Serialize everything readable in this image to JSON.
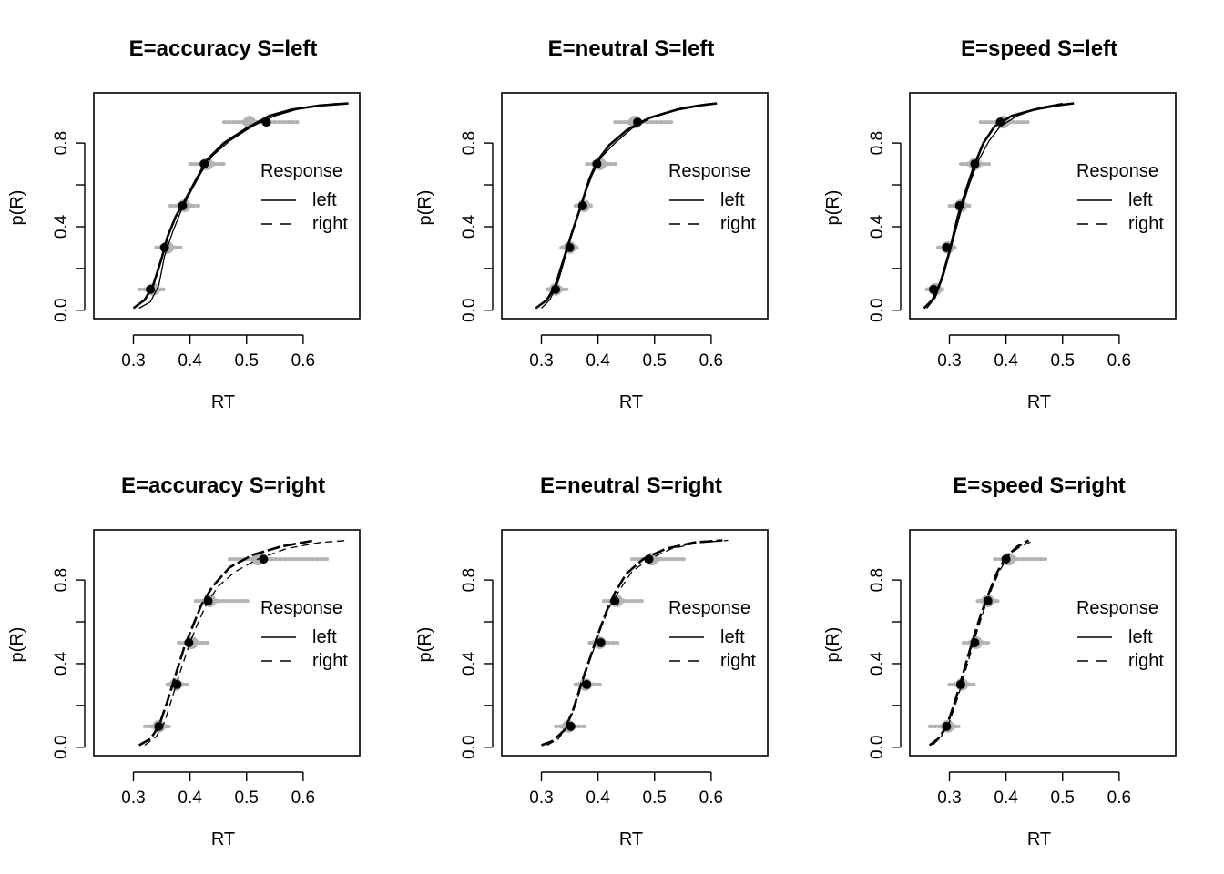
{
  "chart_data": [
    {
      "type": "line",
      "title": "E=accuracy S=left",
      "xlabel": "RT",
      "ylabel": "p(R)",
      "xlim": [
        0.23,
        0.7
      ],
      "ylim": [
        -0.04,
        1.04
      ],
      "xticks": [
        "0.3",
        "0.4",
        "0.5",
        "0.6"
      ],
      "yticks": [
        "0.0",
        "0.4",
        "0.8"
      ],
      "legend": {
        "title": "Response",
        "entries": [
          "left",
          "right"
        ],
        "styles": [
          "solid",
          "dashed"
        ],
        "position": "right"
      },
      "series": [
        {
          "name": "left",
          "style": "solid",
          "width": 2.6,
          "x": [
            0.3,
            0.32,
            0.335,
            0.35,
            0.36,
            0.375,
            0.39,
            0.41,
            0.43,
            0.46,
            0.5,
            0.54,
            0.58,
            0.63,
            0.68
          ],
          "y": [
            0.01,
            0.05,
            0.12,
            0.25,
            0.35,
            0.45,
            0.52,
            0.62,
            0.72,
            0.8,
            0.87,
            0.93,
            0.96,
            0.98,
            0.99
          ]
        },
        {
          "name": "left (predicted)",
          "style": "solid",
          "width": 1.3,
          "x": [
            0.31,
            0.33,
            0.345,
            0.355,
            0.37,
            0.385,
            0.4,
            0.42,
            0.44,
            0.47,
            0.51,
            0.55,
            0.6,
            0.66
          ],
          "y": [
            0.01,
            0.04,
            0.12,
            0.26,
            0.38,
            0.48,
            0.56,
            0.66,
            0.74,
            0.81,
            0.88,
            0.93,
            0.97,
            0.99
          ]
        }
      ],
      "observed": {
        "x": [
          0.33,
          0.355,
          0.387,
          0.425,
          0.535
        ],
        "y": [
          0.1,
          0.3,
          0.5,
          0.7,
          0.9
        ]
      },
      "sim_centers": {
        "x": [
          0.335,
          0.36,
          0.39,
          0.43,
          0.505
        ],
        "y": [
          0.1,
          0.3,
          0.5,
          0.7,
          0.9
        ]
      },
      "sim_ranges": [
        [
          0.31,
          0.355
        ],
        [
          0.34,
          0.385
        ],
        [
          0.365,
          0.415
        ],
        [
          0.4,
          0.46
        ],
        [
          0.46,
          0.59
        ]
      ]
    },
    {
      "type": "line",
      "title": "E=neutral S=left",
      "xlabel": "RT",
      "ylabel": "p(R)",
      "xlim": [
        0.23,
        0.7
      ],
      "ylim": [
        -0.04,
        1.04
      ],
      "xticks": [
        "0.3",
        "0.4",
        "0.5",
        "0.6"
      ],
      "yticks": [
        "0.0",
        "0.4",
        "0.8"
      ],
      "legend": {
        "title": "Response",
        "entries": [
          "left",
          "right"
        ],
        "styles": [
          "solid",
          "dashed"
        ],
        "position": "right"
      },
      "series": [
        {
          "name": "left",
          "style": "solid",
          "width": 2.6,
          "x": [
            0.29,
            0.31,
            0.325,
            0.34,
            0.355,
            0.37,
            0.385,
            0.4,
            0.42,
            0.45,
            0.49,
            0.54,
            0.58,
            0.61
          ],
          "y": [
            0.01,
            0.05,
            0.12,
            0.25,
            0.38,
            0.5,
            0.63,
            0.72,
            0.79,
            0.86,
            0.92,
            0.96,
            0.98,
            0.99
          ]
        },
        {
          "name": "left (predicted)",
          "style": "solid",
          "width": 1.3,
          "x": [
            0.3,
            0.315,
            0.33,
            0.345,
            0.36,
            0.375,
            0.39,
            0.405,
            0.43,
            0.46,
            0.5,
            0.55,
            0.6
          ],
          "y": [
            0.01,
            0.05,
            0.14,
            0.28,
            0.42,
            0.54,
            0.65,
            0.73,
            0.8,
            0.87,
            0.93,
            0.97,
            0.99
          ]
        }
      ],
      "observed": {
        "x": [
          0.325,
          0.35,
          0.373,
          0.398,
          0.47
        ],
        "y": [
          0.1,
          0.3,
          0.5,
          0.7,
          0.9
        ]
      },
      "sim_centers": {
        "x": [
          0.325,
          0.35,
          0.375,
          0.403,
          0.465
        ],
        "y": [
          0.1,
          0.3,
          0.5,
          0.7,
          0.9
        ]
      },
      "sim_ranges": [
        [
          0.31,
          0.345
        ],
        [
          0.335,
          0.365
        ],
        [
          0.36,
          0.39
        ],
        [
          0.38,
          0.435
        ],
        [
          0.43,
          0.53
        ]
      ]
    },
    {
      "type": "line",
      "title": "E=speed S=left",
      "xlabel": "RT",
      "ylabel": "p(R)",
      "xlim": [
        0.23,
        0.7
      ],
      "ylim": [
        -0.04,
        1.04
      ],
      "xticks": [
        "0.3",
        "0.4",
        "0.5",
        "0.6"
      ],
      "yticks": [
        "0.0",
        "0.4",
        "0.8"
      ],
      "legend": {
        "title": "Response",
        "entries": [
          "left",
          "right"
        ],
        "styles": [
          "solid",
          "dashed"
        ],
        "position": "right"
      },
      "series": [
        {
          "name": "left",
          "style": "solid",
          "width": 2.6,
          "x": [
            0.255,
            0.27,
            0.285,
            0.3,
            0.315,
            0.33,
            0.345,
            0.36,
            0.38,
            0.41,
            0.45,
            0.49,
            0.52
          ],
          "y": [
            0.01,
            0.05,
            0.14,
            0.28,
            0.45,
            0.58,
            0.7,
            0.8,
            0.88,
            0.93,
            0.96,
            0.98,
            0.99
          ]
        },
        {
          "name": "left (predicted)",
          "style": "solid",
          "width": 1.3,
          "x": [
            0.26,
            0.275,
            0.29,
            0.305,
            0.32,
            0.335,
            0.35,
            0.37,
            0.39,
            0.42,
            0.46,
            0.5
          ],
          "y": [
            0.01,
            0.06,
            0.17,
            0.32,
            0.47,
            0.6,
            0.71,
            0.81,
            0.88,
            0.93,
            0.97,
            0.99
          ]
        }
      ],
      "observed": {
        "x": [
          0.272,
          0.295,
          0.318,
          0.345,
          0.39
        ],
        "y": [
          0.1,
          0.3,
          0.5,
          0.7,
          0.9
        ]
      },
      "sim_centers": {
        "x": [
          0.275,
          0.297,
          0.32,
          0.345,
          0.395
        ],
        "y": [
          0.1,
          0.3,
          0.5,
          0.7,
          0.9
        ]
      },
      "sim_ranges": [
        [
          0.26,
          0.29
        ],
        [
          0.28,
          0.31
        ],
        [
          0.3,
          0.34
        ],
        [
          0.32,
          0.37
        ],
        [
          0.355,
          0.44
        ]
      ]
    },
    {
      "type": "line",
      "title": "E=accuracy S=right",
      "xlabel": "RT",
      "ylabel": "p(R)",
      "xlim": [
        0.23,
        0.7
      ],
      "ylim": [
        -0.04,
        1.04
      ],
      "xticks": [
        "0.3",
        "0.4",
        "0.5",
        "0.6"
      ],
      "yticks": [
        "0.0",
        "0.4",
        "0.8"
      ],
      "legend": {
        "title": "Response",
        "entries": [
          "left",
          "right"
        ],
        "styles": [
          "solid",
          "dashed"
        ],
        "position": "right"
      },
      "series": [
        {
          "name": "right",
          "style": "dashed",
          "width": 2.6,
          "x": [
            0.31,
            0.33,
            0.345,
            0.36,
            0.375,
            0.39,
            0.405,
            0.42,
            0.44,
            0.47,
            0.51,
            0.56,
            0.6,
            0.62
          ],
          "y": [
            0.01,
            0.04,
            0.1,
            0.22,
            0.35,
            0.48,
            0.58,
            0.68,
            0.77,
            0.86,
            0.92,
            0.96,
            0.98,
            0.99
          ]
        },
        {
          "name": "right (predicted)",
          "style": "dashed",
          "width": 1.3,
          "x": [
            0.32,
            0.34,
            0.355,
            0.37,
            0.385,
            0.4,
            0.415,
            0.43,
            0.45,
            0.48,
            0.52,
            0.57,
            0.63,
            0.68
          ],
          "y": [
            0.01,
            0.05,
            0.12,
            0.25,
            0.38,
            0.5,
            0.6,
            0.69,
            0.77,
            0.84,
            0.9,
            0.95,
            0.98,
            0.99
          ]
        }
      ],
      "observed": {
        "x": [
          0.345,
          0.377,
          0.398,
          0.432,
          0.53
        ],
        "y": [
          0.1,
          0.3,
          0.5,
          0.7,
          0.9
        ]
      },
      "sim_centers": {
        "x": [
          0.345,
          0.375,
          0.403,
          0.435,
          0.52
        ],
        "y": [
          0.1,
          0.3,
          0.5,
          0.7,
          0.9
        ]
      },
      "sim_ranges": [
        [
          0.32,
          0.365
        ],
        [
          0.36,
          0.395
        ],
        [
          0.38,
          0.435
        ],
        [
          0.41,
          0.505
        ],
        [
          0.47,
          0.645
        ]
      ]
    },
    {
      "type": "line",
      "title": "E=neutral S=right",
      "xlabel": "RT",
      "ylabel": "p(R)",
      "xlim": [
        0.23,
        0.7
      ],
      "ylim": [
        -0.04,
        1.04
      ],
      "xticks": [
        "0.3",
        "0.4",
        "0.5",
        "0.6"
      ],
      "yticks": [
        "0.0",
        "0.4",
        "0.8"
      ],
      "legend": {
        "title": "Response",
        "entries": [
          "left",
          "right"
        ],
        "styles": [
          "solid",
          "dashed"
        ],
        "position": "right"
      },
      "series": [
        {
          "name": "right",
          "style": "dashed",
          "width": 2.6,
          "x": [
            0.3,
            0.32,
            0.34,
            0.355,
            0.37,
            0.385,
            0.4,
            0.415,
            0.43,
            0.45,
            0.48,
            0.52,
            0.57,
            0.62
          ],
          "y": [
            0.01,
            0.03,
            0.08,
            0.17,
            0.3,
            0.42,
            0.54,
            0.65,
            0.74,
            0.83,
            0.9,
            0.95,
            0.98,
            0.99
          ]
        },
        {
          "name": "right (predicted)",
          "style": "dashed",
          "width": 1.3,
          "x": [
            0.31,
            0.33,
            0.345,
            0.36,
            0.375,
            0.39,
            0.405,
            0.42,
            0.44,
            0.46,
            0.49,
            0.53,
            0.58,
            0.63
          ],
          "y": [
            0.01,
            0.04,
            0.1,
            0.2,
            0.33,
            0.45,
            0.57,
            0.67,
            0.76,
            0.84,
            0.9,
            0.95,
            0.98,
            0.99
          ]
        }
      ],
      "observed": {
        "x": [
          0.352,
          0.38,
          0.405,
          0.43,
          0.49
        ],
        "y": [
          0.1,
          0.3,
          0.5,
          0.7,
          0.9
        ]
      },
      "sim_centers": {
        "x": [
          0.348,
          0.378,
          0.403,
          0.433,
          0.495
        ],
        "y": [
          0.1,
          0.3,
          0.5,
          0.7,
          0.9
        ]
      },
      "sim_ranges": [
        [
          0.325,
          0.38
        ],
        [
          0.36,
          0.405
        ],
        [
          0.385,
          0.435
        ],
        [
          0.41,
          0.48
        ],
        [
          0.46,
          0.555
        ]
      ]
    },
    {
      "type": "line",
      "title": "E=speed S=right",
      "xlabel": "RT",
      "ylabel": "p(R)",
      "xlim": [
        0.23,
        0.7
      ],
      "ylim": [
        -0.04,
        1.04
      ],
      "xticks": [
        "0.3",
        "0.4",
        "0.5",
        "0.6"
      ],
      "yticks": [
        "0.0",
        "0.4",
        "0.8"
      ],
      "legend": {
        "title": "Response",
        "entries": [
          "left",
          "right"
        ],
        "styles": [
          "solid",
          "dashed"
        ],
        "position": "right"
      },
      "series": [
        {
          "name": "right",
          "style": "dashed",
          "width": 2.6,
          "x": [
            0.265,
            0.28,
            0.295,
            0.31,
            0.325,
            0.34,
            0.355,
            0.37,
            0.385,
            0.4,
            0.42,
            0.44
          ],
          "y": [
            0.01,
            0.04,
            0.1,
            0.22,
            0.36,
            0.5,
            0.63,
            0.74,
            0.84,
            0.91,
            0.96,
            0.99
          ]
        },
        {
          "name": "right (predicted)",
          "style": "dashed",
          "width": 1.3,
          "x": [
            0.27,
            0.285,
            0.3,
            0.315,
            0.33,
            0.345,
            0.36,
            0.375,
            0.39,
            0.405,
            0.425,
            0.45
          ],
          "y": [
            0.01,
            0.05,
            0.12,
            0.24,
            0.38,
            0.52,
            0.65,
            0.76,
            0.85,
            0.92,
            0.96,
            0.99
          ]
        }
      ],
      "observed": {
        "x": [
          0.295,
          0.32,
          0.345,
          0.368,
          0.4
        ],
        "y": [
          0.1,
          0.3,
          0.5,
          0.7,
          0.9
        ]
      },
      "sim_centers": {
        "x": [
          0.297,
          0.322,
          0.347,
          0.368,
          0.405
        ],
        "y": [
          0.1,
          0.3,
          0.5,
          0.7,
          0.9
        ]
      },
      "sim_ranges": [
        [
          0.265,
          0.32
        ],
        [
          0.3,
          0.345
        ],
        [
          0.325,
          0.37
        ],
        [
          0.35,
          0.39
        ],
        [
          0.38,
          0.47
        ]
      ]
    }
  ]
}
